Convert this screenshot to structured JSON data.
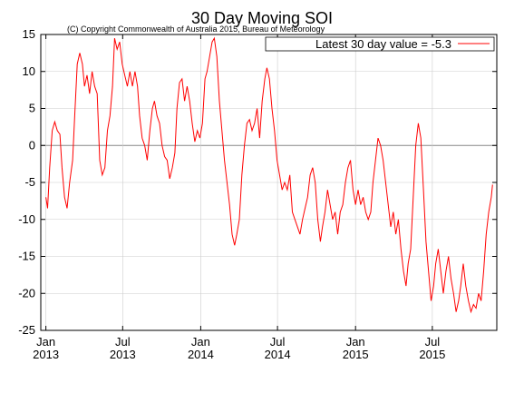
{
  "title": "30 Day Moving SOI",
  "copyright": "(C) Copyright Commonwealth of Australia 2015, Bureau of Meteorology",
  "legend_label": "Latest 30 day value = -5.3",
  "colors": {
    "line": "#ff0000",
    "grid": "#cccccc",
    "zero_line": "#888888",
    "axes": "#000000"
  },
  "chart_data": {
    "type": "line",
    "title": "30 Day Moving SOI",
    "ylim": [
      -25,
      15
    ],
    "y_ticks": [
      15,
      10,
      5,
      0,
      -5,
      -10,
      -15,
      -20,
      -25
    ],
    "x_range": [
      "2012-12-20",
      "2015-11-30"
    ],
    "x_ticks": [
      {
        "month": "Jan",
        "year": "2013",
        "date": "2013-01-01"
      },
      {
        "month": "Jul",
        "year": "2013",
        "date": "2013-07-01"
      },
      {
        "month": "Jan",
        "year": "2014",
        "date": "2014-01-01"
      },
      {
        "month": "Jul",
        "year": "2014",
        "date": "2014-07-01"
      },
      {
        "month": "Jan",
        "year": "2015",
        "date": "2015-01-01"
      },
      {
        "month": "Jul",
        "year": "2015",
        "date": "2015-07-01"
      }
    ],
    "grid": true,
    "legend_position": "top-right",
    "series": [
      {
        "name": "Latest 30 day value = -5.3",
        "color": "#ff0000",
        "points": [
          [
            "2013-01-01",
            -7
          ],
          [
            "2013-01-05",
            -8.5
          ],
          [
            "2013-01-10",
            -3
          ],
          [
            "2013-01-16",
            2
          ],
          [
            "2013-01-22",
            3.2
          ],
          [
            "2013-01-28",
            2
          ],
          [
            "2013-02-03",
            1.5
          ],
          [
            "2013-02-08",
            -3
          ],
          [
            "2013-02-14",
            -7
          ],
          [
            "2013-02-20",
            -8.5
          ],
          [
            "2013-02-26",
            -5
          ],
          [
            "2013-03-05",
            -2
          ],
          [
            "2013-03-10",
            4
          ],
          [
            "2013-03-16",
            11
          ],
          [
            "2013-03-22",
            12.5
          ],
          [
            "2013-03-28",
            11
          ],
          [
            "2013-04-02",
            8
          ],
          [
            "2013-04-08",
            9.5
          ],
          [
            "2013-04-14",
            7
          ],
          [
            "2013-04-20",
            10
          ],
          [
            "2013-04-26",
            8
          ],
          [
            "2013-05-02",
            7
          ],
          [
            "2013-05-08",
            -2
          ],
          [
            "2013-05-14",
            -4
          ],
          [
            "2013-05-20",
            -3
          ],
          [
            "2013-05-26",
            2
          ],
          [
            "2013-06-01",
            4
          ],
          [
            "2013-06-07",
            8
          ],
          [
            "2013-06-12",
            14.5
          ],
          [
            "2013-06-18",
            13
          ],
          [
            "2013-06-24",
            14
          ],
          [
            "2013-06-30",
            11
          ],
          [
            "2013-07-06",
            9.5
          ],
          [
            "2013-07-12",
            8
          ],
          [
            "2013-07-18",
            10
          ],
          [
            "2013-07-24",
            8
          ],
          [
            "2013-07-30",
            10
          ],
          [
            "2013-08-05",
            8
          ],
          [
            "2013-08-10",
            4
          ],
          [
            "2013-08-16",
            1
          ],
          [
            "2013-08-22",
            0
          ],
          [
            "2013-08-28",
            -2
          ],
          [
            "2013-09-03",
            2
          ],
          [
            "2013-09-09",
            5
          ],
          [
            "2013-09-14",
            6
          ],
          [
            "2013-09-20",
            4
          ],
          [
            "2013-09-26",
            3
          ],
          [
            "2013-10-02",
            0
          ],
          [
            "2013-10-08",
            -1.5
          ],
          [
            "2013-10-14",
            -2
          ],
          [
            "2013-10-20",
            -4.5
          ],
          [
            "2013-10-26",
            -3
          ],
          [
            "2013-11-01",
            -1
          ],
          [
            "2013-11-06",
            5
          ],
          [
            "2013-11-12",
            8.5
          ],
          [
            "2013-11-18",
            9
          ],
          [
            "2013-11-24",
            6
          ],
          [
            "2013-11-30",
            8
          ],
          [
            "2013-12-06",
            6
          ],
          [
            "2013-12-12",
            3
          ],
          [
            "2013-12-18",
            0.5
          ],
          [
            "2013-12-24",
            2
          ],
          [
            "2013-12-30",
            1
          ],
          [
            "2014-01-05",
            3
          ],
          [
            "2014-01-11",
            9
          ],
          [
            "2014-01-16",
            10
          ],
          [
            "2014-01-22",
            12
          ],
          [
            "2014-01-28",
            14
          ],
          [
            "2014-02-02",
            14.5
          ],
          [
            "2014-02-08",
            12
          ],
          [
            "2014-02-14",
            6
          ],
          [
            "2014-02-20",
            2
          ],
          [
            "2014-02-26",
            -2
          ],
          [
            "2014-03-04",
            -5
          ],
          [
            "2014-03-10",
            -8
          ],
          [
            "2014-03-16",
            -12
          ],
          [
            "2014-03-22",
            -13.5
          ],
          [
            "2014-03-27",
            -12
          ],
          [
            "2014-04-02",
            -10
          ],
          [
            "2014-04-08",
            -4
          ],
          [
            "2014-04-14",
            0
          ],
          [
            "2014-04-20",
            3
          ],
          [
            "2014-04-26",
            3.5
          ],
          [
            "2014-05-02",
            2
          ],
          [
            "2014-05-08",
            3
          ],
          [
            "2014-05-14",
            5
          ],
          [
            "2014-05-20",
            1
          ],
          [
            "2014-05-26",
            6
          ],
          [
            "2014-06-01",
            9
          ],
          [
            "2014-06-06",
            10.5
          ],
          [
            "2014-06-12",
            9
          ],
          [
            "2014-06-18",
            5
          ],
          [
            "2014-06-24",
            2
          ],
          [
            "2014-06-30",
            -2
          ],
          [
            "2014-07-06",
            -4
          ],
          [
            "2014-07-12",
            -6
          ],
          [
            "2014-07-18",
            -5
          ],
          [
            "2014-07-24",
            -6
          ],
          [
            "2014-07-30",
            -4
          ],
          [
            "2014-08-05",
            -9
          ],
          [
            "2014-08-11",
            -10
          ],
          [
            "2014-08-17",
            -11
          ],
          [
            "2014-08-23",
            -12
          ],
          [
            "2014-08-29",
            -10
          ],
          [
            "2014-09-04",
            -8.5
          ],
          [
            "2014-09-10",
            -7
          ],
          [
            "2014-09-16",
            -4
          ],
          [
            "2014-09-22",
            -3
          ],
          [
            "2014-09-28",
            -5
          ],
          [
            "2014-10-04",
            -10
          ],
          [
            "2014-10-10",
            -13
          ],
          [
            "2014-10-15",
            -11
          ],
          [
            "2014-10-21",
            -9
          ],
          [
            "2014-10-27",
            -6
          ],
          [
            "2014-11-02",
            -8
          ],
          [
            "2014-11-08",
            -10
          ],
          [
            "2014-11-14",
            -9
          ],
          [
            "2014-11-20",
            -12
          ],
          [
            "2014-11-26",
            -9
          ],
          [
            "2014-12-02",
            -8
          ],
          [
            "2014-12-08",
            -5
          ],
          [
            "2014-12-14",
            -3
          ],
          [
            "2014-12-20",
            -2
          ],
          [
            "2014-12-26",
            -6
          ],
          [
            "2015-01-01",
            -8
          ],
          [
            "2015-01-07",
            -6
          ],
          [
            "2015-01-13",
            -8
          ],
          [
            "2015-01-19",
            -7
          ],
          [
            "2015-01-25",
            -9
          ],
          [
            "2015-01-31",
            -10
          ],
          [
            "2015-02-06",
            -9
          ],
          [
            "2015-02-11",
            -5
          ],
          [
            "2015-02-17",
            -2
          ],
          [
            "2015-02-23",
            1
          ],
          [
            "2015-03-01",
            0
          ],
          [
            "2015-03-07",
            -2
          ],
          [
            "2015-03-13",
            -5
          ],
          [
            "2015-03-19",
            -8
          ],
          [
            "2015-03-25",
            -11
          ],
          [
            "2015-03-31",
            -9
          ],
          [
            "2015-04-06",
            -12
          ],
          [
            "2015-04-12",
            -10
          ],
          [
            "2015-04-18",
            -14
          ],
          [
            "2015-04-24",
            -17
          ],
          [
            "2015-04-30",
            -19
          ],
          [
            "2015-05-05",
            -16
          ],
          [
            "2015-05-11",
            -14
          ],
          [
            "2015-05-17",
            -7
          ],
          [
            "2015-05-23",
            0
          ],
          [
            "2015-05-29",
            3
          ],
          [
            "2015-06-04",
            1
          ],
          [
            "2015-06-10",
            -6
          ],
          [
            "2015-06-16",
            -13
          ],
          [
            "2015-06-22",
            -17
          ],
          [
            "2015-06-28",
            -21
          ],
          [
            "2015-07-04",
            -19
          ],
          [
            "2015-07-09",
            -16
          ],
          [
            "2015-07-15",
            -14
          ],
          [
            "2015-07-21",
            -17
          ],
          [
            "2015-07-27",
            -20
          ],
          [
            "2015-08-02",
            -17
          ],
          [
            "2015-08-08",
            -15
          ],
          [
            "2015-08-14",
            -18
          ],
          [
            "2015-08-20",
            -20
          ],
          [
            "2015-08-26",
            -22.5
          ],
          [
            "2015-09-01",
            -21
          ],
          [
            "2015-09-06",
            -19
          ],
          [
            "2015-09-12",
            -16
          ],
          [
            "2015-09-18",
            -19
          ],
          [
            "2015-09-24",
            -21
          ],
          [
            "2015-09-30",
            -22.5
          ],
          [
            "2015-10-06",
            -21.5
          ],
          [
            "2015-10-12",
            -22
          ],
          [
            "2015-10-18",
            -20
          ],
          [
            "2015-10-24",
            -21
          ],
          [
            "2015-10-30",
            -17
          ],
          [
            "2015-11-05",
            -12
          ],
          [
            "2015-11-11",
            -9
          ],
          [
            "2015-11-17",
            -7
          ],
          [
            "2015-11-20",
            -5.3
          ]
        ]
      }
    ]
  }
}
